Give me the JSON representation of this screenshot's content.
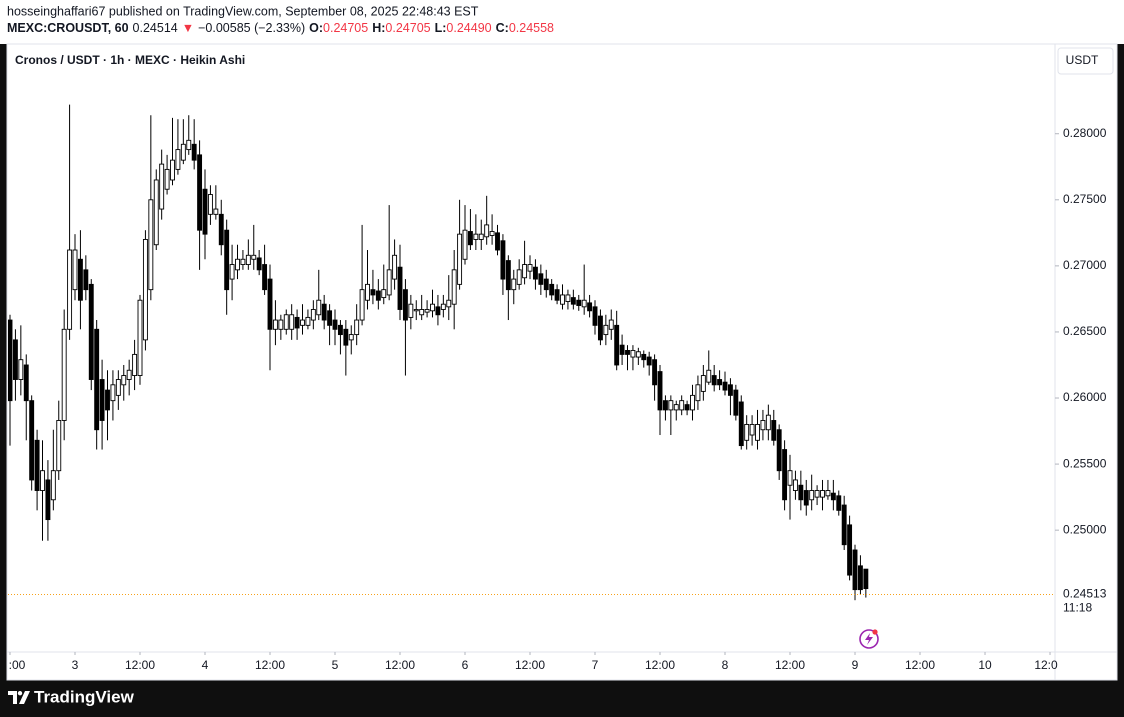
{
  "header": {
    "published": "hosseinghaffari67 published on TradingView.com, September 08, 2025 22:48:43 EST",
    "ohlc_line": [
      {
        "text": "MEXC:CROUSDT, 60",
        "color": "#131722",
        "bold": true
      },
      {
        "text": "0.24514",
        "color": "#131722"
      },
      {
        "text": "▼",
        "color": "#f23645"
      },
      {
        "text": "−0.00585 (−2.33%)",
        "color": "#131722"
      },
      {
        "text": "O:",
        "color": "#131722",
        "bold": true
      },
      {
        "text": "0.24705",
        "color": "#f23645"
      },
      {
        "text": "H:",
        "color": "#131722",
        "bold": true
      },
      {
        "text": "0.24705",
        "color": "#f23645"
      },
      {
        "text": "L:",
        "color": "#131722",
        "bold": true
      },
      {
        "text": "0.24490",
        "color": "#f23645"
      },
      {
        "text": "C:",
        "color": "#131722",
        "bold": true
      },
      {
        "text": "0.24558",
        "color": "#f23645"
      }
    ]
  },
  "currency_button": "USDT",
  "footer_brand": "TradingView",
  "chart_data": {
    "type": "candlestick",
    "title": "Cronos / USDT · 1h · MEXC · Heikin Ashi",
    "up_color": "#ffffff",
    "down_color": "#000000",
    "edge_color": "#000000",
    "grid": false,
    "x": [
      12,
      13,
      14,
      15,
      16,
      17,
      18,
      19,
      20,
      21,
      22,
      23,
      24,
      25,
      26,
      27,
      28,
      29,
      30,
      31,
      32,
      33,
      34,
      35,
      36,
      37,
      38,
      39,
      40,
      41,
      42,
      43,
      44,
      45,
      46,
      47,
      48,
      49,
      50,
      51,
      52,
      53,
      54,
      55,
      56,
      57,
      58,
      59,
      60,
      61,
      62,
      63,
      64,
      65,
      66,
      67,
      68,
      69,
      70,
      71,
      72,
      73,
      74,
      75,
      76,
      77,
      78,
      79,
      80,
      81,
      82,
      83,
      84,
      85,
      86,
      87,
      88,
      89,
      90,
      91,
      92,
      93,
      94,
      95,
      96,
      97,
      98,
      99,
      100,
      101,
      102,
      103,
      104,
      105,
      106,
      107,
      108,
      109,
      110,
      111,
      112,
      113,
      114,
      115,
      116,
      117,
      118,
      119,
      120,
      121,
      122,
      123,
      124,
      125,
      126,
      127,
      128,
      129,
      130,
      131,
      132,
      133,
      134,
      135,
      136,
      137,
      138,
      139,
      140,
      141,
      142,
      143,
      144,
      145,
      146,
      147,
      148,
      149,
      150,
      151,
      152,
      153,
      154,
      155,
      156,
      157,
      158,
      159,
      160,
      161,
      162,
      163,
      164,
      165,
      166,
      167,
      168,
      169,
      170
    ],
    "open": [
      0.2659,
      0.2644,
      0.2614,
      0.2625,
      0.2598,
      0.2568,
      0.253,
      0.2538,
      0.2523,
      0.2545,
      0.2583,
      0.2652,
      0.2682,
      0.2705,
      0.2697,
      0.2686,
      0.2652,
      0.2614,
      0.2606,
      0.2598,
      0.2602,
      0.261,
      0.2614,
      0.2617,
      0.2617,
      0.2644,
      0.2682,
      0.2716,
      0.2743,
      0.2758,
      0.2765,
      0.2773,
      0.278,
      0.2788,
      0.2792,
      0.2784,
      0.2758,
      0.2739,
      0.2739,
      0.2739,
      0.2727,
      0.269,
      0.2697,
      0.2701,
      0.2701,
      0.2705,
      0.2706,
      0.2701,
      0.269,
      0.2652,
      0.2652,
      0.2652,
      0.2652,
      0.2661,
      0.2655,
      0.2655,
      0.2659,
      0.2663,
      0.2671,
      0.2666,
      0.2659,
      0.2655,
      0.2652,
      0.2644,
      0.2648,
      0.2659,
      0.2674,
      0.2682,
      0.2681,
      0.2676,
      0.2678,
      0.269,
      0.2699,
      0.2682,
      0.2661,
      0.2666,
      0.2663,
      0.2665,
      0.2666,
      0.2669,
      0.2667,
      0.2669,
      0.2671,
      0.2686,
      0.2705,
      0.2726,
      0.272,
      0.272,
      0.2722,
      0.2723,
      0.2725,
      0.2719,
      0.2704,
      0.2682,
      0.2686,
      0.2691,
      0.2696,
      0.2699,
      0.2694,
      0.269,
      0.2686,
      0.2682,
      0.2671,
      0.2673,
      0.2676,
      0.2674,
      0.2669,
      0.2672,
      0.2669,
      0.2662,
      0.2648,
      0.2652,
      0.2655,
      0.264,
      0.2636,
      0.2631,
      0.2631,
      0.2633,
      0.2631,
      0.2629,
      0.262,
      0.2598,
      0.2591,
      0.2591,
      0.2591,
      0.2595,
      0.2591,
      0.2598,
      0.2605,
      0.2612,
      0.2617,
      0.2614,
      0.2612,
      0.261,
      0.2606,
      0.2597,
      0.2568,
      0.2572,
      0.2568,
      0.2576,
      0.2576,
      0.2583,
      0.2576,
      0.2561,
      0.2534,
      0.253,
      0.2534,
      0.253,
      0.2523,
      0.2525,
      0.2525,
      0.2526,
      0.2528,
      0.2526,
      0.2519,
      0.2504,
      0.2485,
      0.2473,
      0.24705
    ],
    "high": [
      0.2663,
      0.2652,
      0.2655,
      0.2633,
      0.2602,
      0.2576,
      0.2568,
      0.2553,
      0.2576,
      0.2598,
      0.2667,
      0.2822,
      0.2724,
      0.2727,
      0.2708,
      0.269,
      0.2659,
      0.2629,
      0.2621,
      0.2621,
      0.2621,
      0.2625,
      0.2629,
      0.2644,
      0.2678,
      0.2727,
      0.2814,
      0.2773,
      0.2788,
      0.2784,
      0.2812,
      0.2811,
      0.2811,
      0.2814,
      0.2811,
      0.2795,
      0.2773,
      0.2761,
      0.2761,
      0.275,
      0.2735,
      0.2716,
      0.2716,
      0.2712,
      0.272,
      0.2731,
      0.2712,
      0.2716,
      0.2701,
      0.2674,
      0.2663,
      0.2667,
      0.2671,
      0.2667,
      0.2671,
      0.2667,
      0.2674,
      0.2697,
      0.2678,
      0.2671,
      0.2667,
      0.2659,
      0.2659,
      0.2655,
      0.2671,
      0.2731,
      0.2712,
      0.2697,
      0.269,
      0.2701,
      0.2746,
      0.272,
      0.2716,
      0.269,
      0.2678,
      0.2674,
      0.2678,
      0.2674,
      0.2682,
      0.2678,
      0.2678,
      0.2693,
      0.2712,
      0.275,
      0.2746,
      0.2743,
      0.2739,
      0.2735,
      0.2753,
      0.2739,
      0.2731,
      0.2724,
      0.2708,
      0.2697,
      0.2705,
      0.2719,
      0.2708,
      0.2705,
      0.2701,
      0.2697,
      0.269,
      0.2686,
      0.2686,
      0.2682,
      0.2682,
      0.2678,
      0.2701,
      0.2678,
      0.2674,
      0.2667,
      0.2663,
      0.2667,
      0.2666,
      0.2648,
      0.264,
      0.264,
      0.2638,
      0.2636,
      0.2635,
      0.2633,
      0.2625,
      0.2602,
      0.2602,
      0.2598,
      0.2602,
      0.2598,
      0.261,
      0.2617,
      0.2625,
      0.2636,
      0.2625,
      0.2621,
      0.262,
      0.2615,
      0.261,
      0.2602,
      0.2587,
      0.2587,
      0.2591,
      0.2591,
      0.2595,
      0.2591,
      0.258,
      0.2568,
      0.2557,
      0.2545,
      0.2545,
      0.2538,
      0.2542,
      0.2534,
      0.2538,
      0.2538,
      0.2538,
      0.253,
      0.2526,
      0.2511,
      0.2489,
      0.2481,
      0.24705
    ],
    "low": [
      0.2564,
      0.2598,
      0.2602,
      0.2568,
      0.253,
      0.2515,
      0.2492,
      0.2492,
      0.2515,
      0.2538,
      0.2568,
      0.2644,
      0.2674,
      0.2652,
      0.2674,
      0.2606,
      0.2561,
      0.2561,
      0.2568,
      0.2583,
      0.2591,
      0.2598,
      0.2602,
      0.2606,
      0.261,
      0.2636,
      0.2674,
      0.2712,
      0.2735,
      0.2754,
      0.2761,
      0.2769,
      0.2777,
      0.2784,
      0.2773,
      0.2697,
      0.2705,
      0.2731,
      0.2735,
      0.2708,
      0.2663,
      0.2674,
      0.269,
      0.2697,
      0.2697,
      0.2697,
      0.2693,
      0.2678,
      0.2621,
      0.264,
      0.2644,
      0.2648,
      0.2644,
      0.2644,
      0.2648,
      0.2652,
      0.2652,
      0.2659,
      0.2652,
      0.264,
      0.264,
      0.2633,
      0.2617,
      0.2633,
      0.264,
      0.2655,
      0.2667,
      0.2671,
      0.2667,
      0.2671,
      0.2674,
      0.2682,
      0.2659,
      0.2617,
      0.2652,
      0.2659,
      0.2659,
      0.2661,
      0.2661,
      0.2655,
      0.2661,
      0.2659,
      0.2652,
      0.2682,
      0.2701,
      0.2712,
      0.2712,
      0.2712,
      0.2716,
      0.2716,
      0.2708,
      0.2678,
      0.2659,
      0.2671,
      0.2682,
      0.2686,
      0.269,
      0.2682,
      0.2678,
      0.2676,
      0.2674,
      0.2671,
      0.2667,
      0.2667,
      0.2667,
      0.2666,
      0.2663,
      0.2661,
      0.2648,
      0.264,
      0.264,
      0.2644,
      0.2621,
      0.2625,
      0.2621,
      0.2621,
      0.2625,
      0.2623,
      0.2617,
      0.2598,
      0.2572,
      0.2583,
      0.2572,
      0.2583,
      0.2587,
      0.2587,
      0.2583,
      0.2591,
      0.2598,
      0.261,
      0.2605,
      0.2606,
      0.2602,
      0.2587,
      0.2583,
      0.2561,
      0.2561,
      0.2564,
      0.2561,
      0.2568,
      0.2568,
      0.2564,
      0.2538,
      0.2515,
      0.2508,
      0.2523,
      0.2515,
      0.2511,
      0.2515,
      0.2519,
      0.2515,
      0.2523,
      0.2515,
      0.2511,
      0.2485,
      0.2462,
      0.2447,
      0.2451,
      0.2449
    ],
    "close": [
      0.2598,
      0.2614,
      0.2629,
      0.2598,
      0.2538,
      0.253,
      0.2545,
      0.2508,
      0.2545,
      0.2583,
      0.2652,
      0.2712,
      0.2712,
      0.2674,
      0.2682,
      0.2614,
      0.2576,
      0.2583,
      0.2591,
      0.261,
      0.2614,
      0.2617,
      0.2621,
      0.2633,
      0.2674,
      0.272,
      0.275,
      0.2765,
      0.2777,
      0.2773,
      0.278,
      0.2788,
      0.2792,
      0.2795,
      0.278,
      0.2727,
      0.2724,
      0.2754,
      0.2743,
      0.2716,
      0.2682,
      0.2701,
      0.2705,
      0.2705,
      0.2708,
      0.2708,
      0.2697,
      0.2682,
      0.2652,
      0.2659,
      0.2659,
      0.2663,
      0.2663,
      0.2653,
      0.2659,
      0.2661,
      0.2667,
      0.2674,
      0.2659,
      0.2655,
      0.2652,
      0.2648,
      0.264,
      0.2648,
      0.2659,
      0.2682,
      0.2686,
      0.2678,
      0.2674,
      0.2682,
      0.2697,
      0.2708,
      0.2667,
      0.2659,
      0.2671,
      0.2667,
      0.2667,
      0.2667,
      0.2671,
      0.2663,
      0.2671,
      0.2674,
      0.2697,
      0.2724,
      0.2727,
      0.2716,
      0.2724,
      0.2724,
      0.2731,
      0.2726,
      0.2712,
      0.269,
      0.2682,
      0.269,
      0.2697,
      0.2701,
      0.2701,
      0.269,
      0.2686,
      0.2682,
      0.2678,
      0.2674,
      0.2678,
      0.2678,
      0.2671,
      0.267,
      0.2674,
      0.2666,
      0.2655,
      0.2644,
      0.2655,
      0.2659,
      0.2625,
      0.2633,
      0.2633,
      0.2636,
      0.2635,
      0.2629,
      0.2625,
      0.261,
      0.2591,
      0.2591,
      0.2598,
      0.2595,
      0.2598,
      0.2591,
      0.2602,
      0.261,
      0.2617,
      0.2621,
      0.261,
      0.261,
      0.2606,
      0.2602,
      0.2587,
      0.2564,
      0.258,
      0.258,
      0.258,
      0.2583,
      0.2587,
      0.2568,
      0.2545,
      0.2523,
      0.2545,
      0.2538,
      0.2523,
      0.2519,
      0.253,
      0.253,
      0.253,
      0.253,
      0.2523,
      0.2515,
      0.2489,
      0.2466,
      0.2455,
      0.2455,
      0.24558
    ],
    "xlim": [
      11.63,
      204.92
    ],
    "xticks": [
      {
        "value": 12,
        "label": ":00"
      },
      {
        "value": 24,
        "label": "3"
      },
      {
        "value": 36,
        "label": "12:00"
      },
      {
        "value": 48,
        "label": "4"
      },
      {
        "value": 60,
        "label": "12:00"
      },
      {
        "value": 72,
        "label": "5"
      },
      {
        "value": 84,
        "label": "12:00"
      },
      {
        "value": 96,
        "label": "6"
      },
      {
        "value": 108,
        "label": "12:00"
      },
      {
        "value": 120,
        "label": "7"
      },
      {
        "value": 132,
        "label": "12:00"
      },
      {
        "value": 144,
        "label": "8"
      },
      {
        "value": 156,
        "label": "12:00"
      },
      {
        "value": 168,
        "label": "9"
      },
      {
        "value": 180,
        "label": "12:00"
      },
      {
        "value": 192,
        "label": "10"
      },
      {
        "value": 204,
        "label": "12:0"
      }
    ],
    "ylim": [
      0.24078,
      0.28679
    ],
    "yticks": [
      {
        "value": 0.25,
        "label": "0.25000"
      },
      {
        "value": 0.255,
        "label": "0.25500"
      },
      {
        "value": 0.26,
        "label": "0.26000"
      },
      {
        "value": 0.265,
        "label": "0.26500"
      },
      {
        "value": 0.27,
        "label": "0.27000"
      },
      {
        "value": 0.275,
        "label": "0.27500"
      },
      {
        "value": 0.28,
        "label": "0.28000"
      }
    ],
    "price_line": {
      "value": 0.24513,
      "countdown": "11:18",
      "color": "#f7a21b"
    }
  }
}
